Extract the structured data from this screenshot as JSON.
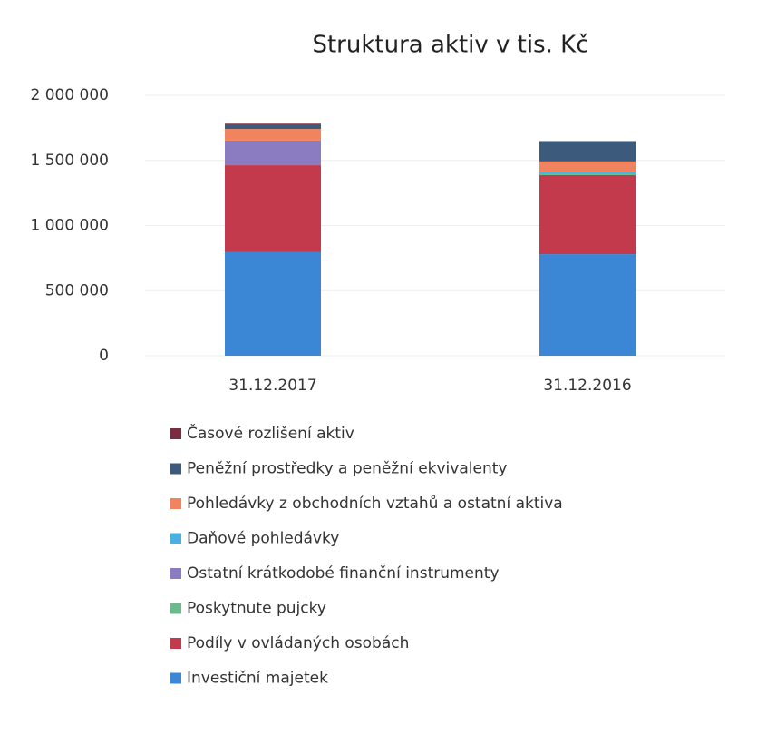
{
  "chart_data": {
    "type": "stacked_bar",
    "title": "Struktura aktiv v tis. Kč",
    "categories": [
      "31.12.2017",
      "31.12.2016"
    ],
    "series": [
      {
        "name": "Investiční majetek",
        "color": "#3b87d6",
        "values": [
          795000,
          780000
        ]
      },
      {
        "name": "Podíly v ovládaných osobách",
        "color": "#c23a4c",
        "values": [
          668000,
          607000
        ]
      },
      {
        "name": "Poskytnute pujcky",
        "color": "#6cb98e",
        "values": [
          0,
          10000
        ]
      },
      {
        "name": "Ostatní krátkodobé finanční instrumenty",
        "color": "#8b7cc2",
        "values": [
          189000,
          0
        ]
      },
      {
        "name": "Daňové pohledávky",
        "color": "#4bb0e0",
        "values": [
          0,
          15000
        ]
      },
      {
        "name": "Pohledávky z obchodních vztahů a ostatní aktiva",
        "color": "#f2835f",
        "values": [
          90000,
          80000
        ]
      },
      {
        "name": "Peněžní prostředky a peněžní ekvivalenty",
        "color": "#3b5a7c",
        "values": [
          35000,
          154000
        ]
      },
      {
        "name": "Časové rozlišení aktiv",
        "color": "#7a2d40",
        "values": [
          5000,
          3000
        ]
      }
    ],
    "ylim": [
      0,
      2000000
    ],
    "yticks": [
      0,
      {
        "value": 500000,
        "label": "500 000"
      },
      {
        "value": 1000000,
        "label": "1 000 000"
      },
      {
        "value": 1500000,
        "label": "1 500 000"
      },
      {
        "value": 2000000,
        "label": "2 000 000"
      }
    ],
    "grid": true,
    "legend": "bottom"
  }
}
